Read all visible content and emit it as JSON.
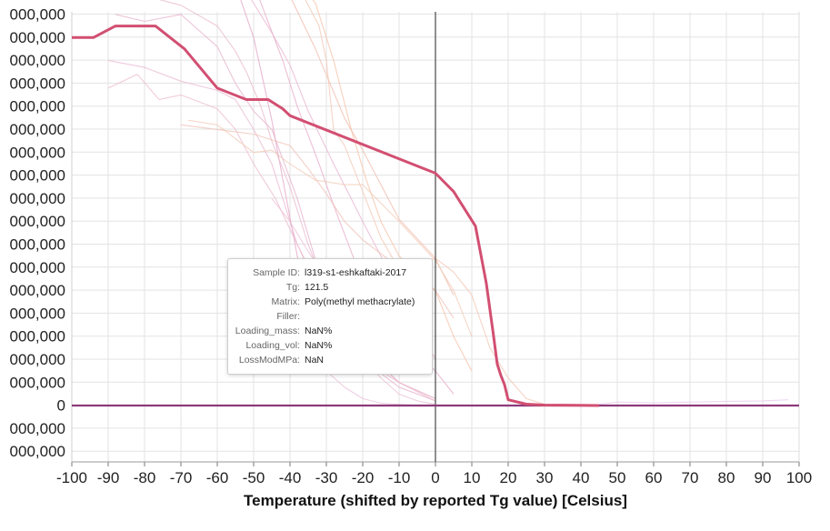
{
  "chart_data": {
    "type": "line",
    "xlabel": "Temperature (shifted by reported Tg value) [Celsius]",
    "ylabel": "",
    "xlim": [
      -100,
      100
    ],
    "x_ticks": [
      "-100",
      "-90",
      "-80",
      "-70",
      "-60",
      "-50",
      "-40",
      "-30",
      "-20",
      "-10",
      "0",
      "10",
      "20",
      "30",
      "40",
      "50",
      "60",
      "70",
      "80",
      "90",
      "100"
    ],
    "y_ticks": [
      "000,000",
      "000,000",
      "000,000",
      "000,000",
      "000,000",
      "000,000",
      "000,000",
      "000,000",
      "000,000",
      "000,000",
      "000,000",
      "000,000",
      "000,000",
      "000,000",
      "000,000",
      "000,000",
      "000,000",
      "0",
      "000,000",
      "000,000"
    ],
    "grid": true,
    "highlight_series": {
      "name": "l319-s1-eshkaftaki-2017",
      "color": "#d24f72",
      "x": [
        -100,
        -94,
        -88,
        -84,
        -77,
        -69,
        -60,
        -52,
        -46,
        -42,
        -40,
        0,
        5,
        11,
        14,
        16,
        17,
        18,
        19,
        20,
        25,
        30,
        45
      ],
      "y": [
        16.0,
        16.0,
        16.5,
        16.5,
        16.5,
        15.5,
        13.8,
        13.3,
        13.3,
        12.9,
        12.6,
        10.1,
        9.3,
        7.8,
        5.3,
        3.0,
        1.8,
        1.3,
        0.9,
        0.25,
        0.06,
        0.02,
        0.0
      ]
    },
    "background_series": [
      {
        "color": "#e2a3c4",
        "x": [
          -100,
          -95,
          -89,
          -84,
          -80,
          -78,
          -74,
          -70,
          -62,
          -55,
          -50,
          -45,
          -41,
          -38,
          -30
        ],
        "y": [
          22.7,
          22.6,
          22.4,
          22.5,
          22.5,
          22.8,
          22.3,
          21.5,
          20.0,
          18.3,
          16.0,
          12.4,
          9.0,
          6.5,
          1.5
        ]
      },
      {
        "color": "#e6a9c6",
        "x": [
          -95,
          -86,
          -80,
          -72,
          -68,
          -60,
          -54,
          -48,
          -42,
          -38,
          -32,
          -28,
          -22,
          -15,
          0,
          5
        ],
        "y": [
          22.6,
          22.5,
          22.4,
          22.4,
          22.6,
          21.8,
          20.2,
          17.5,
          15.0,
          13.0,
          10.5,
          8.7,
          6.2,
          4.0,
          1.5,
          0.5
        ]
      },
      {
        "color": "#e8b2cf",
        "x": [
          -93,
          -82,
          -75,
          -68,
          -60,
          -52,
          -45,
          -40,
          -35,
          -28,
          -20,
          -10,
          0
        ],
        "y": [
          21.6,
          22.0,
          22.0,
          21.1,
          19.7,
          18.0,
          16.2,
          14.8,
          12.8,
          10.5,
          8.0,
          5.0,
          2.0
        ]
      },
      {
        "color": "#f0b9a9",
        "x": [
          -75,
          -70,
          -65,
          -60,
          -55,
          -49,
          -45,
          -40,
          -33,
          -25,
          -20,
          -10,
          0,
          5
        ],
        "y": [
          22.3,
          22.4,
          22.0,
          21.1,
          21.4,
          20.8,
          19.8,
          17.8,
          15.5,
          12.5,
          11.1,
          8.1,
          6.4,
          4.8
        ]
      },
      {
        "color": "#f5c0a6",
        "x": [
          -60,
          -55,
          -48,
          -43,
          -40,
          -33,
          -28,
          -23,
          -19,
          -15,
          -10,
          0,
          5,
          10
        ],
        "y": [
          21.0,
          20.9,
          20.5,
          19.4,
          18.8,
          17.5,
          15.0,
          11.9,
          9.8,
          8.0,
          6.5,
          5.0,
          3.0,
          1.5
        ]
      },
      {
        "color": "#f3c6b2",
        "x": [
          -40,
          -35,
          -32,
          -30,
          -28,
          -25,
          -20,
          -15,
          -10,
          0,
          5,
          10,
          15,
          20,
          25,
          30
        ],
        "y": [
          19.0,
          17.4,
          16.5,
          15.0,
          12.0,
          11.3,
          9.3,
          7.3,
          5.9,
          6.4,
          5.8,
          4.8,
          2.5,
          1.2,
          0.3,
          0.05
        ]
      },
      {
        "color": "#e9b7d0",
        "x": [
          -90,
          -80,
          -70,
          -60,
          -55,
          -50,
          -45,
          -42,
          -38,
          -32,
          -25,
          -20,
          -10,
          0
        ],
        "y": [
          15.0,
          14.7,
          14.1,
          13.7,
          13.3,
          12.0,
          10.5,
          9.0,
          7.0,
          5.0,
          3.0,
          2.0,
          1.0,
          0.3
        ]
      },
      {
        "color": "#e6b0cb",
        "x": [
          -88,
          -80,
          -70,
          -60,
          -55,
          -50,
          -45,
          -38,
          -32,
          -26,
          -20,
          -10,
          0
        ],
        "y": [
          17.0,
          16.7,
          17.0,
          15.6,
          14.0,
          12.8,
          12.0,
          9.0,
          5.8,
          3.5,
          2.0,
          0.8,
          0.2
        ]
      },
      {
        "color": "#e8b8c9",
        "x": [
          -82,
          -70,
          -60,
          -55,
          -52,
          -48,
          -45,
          -40,
          -35,
          -30,
          -20,
          -10,
          0
        ],
        "y": [
          17.9,
          17.4,
          16.5,
          15.4,
          14.5,
          13.0,
          11.5,
          9.5,
          7.0,
          5.0,
          2.5,
          1.0,
          0.3
        ]
      },
      {
        "color": "#ecb9cf",
        "x": [
          -90,
          -82,
          -76,
          -70,
          -65,
          -60,
          -55,
          -50,
          -44,
          -38,
          -30,
          -20,
          -10,
          0
        ],
        "y": [
          13.8,
          14.4,
          13.3,
          13.5,
          13.2,
          12.9,
          12.0,
          10.5,
          9.0,
          7.0,
          4.5,
          2.5,
          1.0,
          0.2
        ]
      },
      {
        "color": "#efbfb5",
        "x": [
          -70,
          -60,
          -50,
          -40,
          -35,
          -30,
          -25,
          -20,
          -10,
          0,
          5
        ],
        "y": [
          12.2,
          12.0,
          11.8,
          11.3,
          10.3,
          9.2,
          8.0,
          7.2,
          6.0,
          5.0,
          3.8
        ]
      },
      {
        "color": "#f2c9b6",
        "x": [
          -68,
          -60,
          -55,
          -50,
          -45,
          -40,
          -33,
          -25,
          -20,
          -10,
          0,
          5,
          10
        ],
        "y": [
          12.4,
          12.2,
          11.6,
          11.0,
          11.1,
          10.5,
          9.8,
          9.6,
          9.6,
          8.0,
          6.3,
          5.0,
          3.0
        ]
      },
      {
        "color": "#ebbfd4",
        "x": [
          -45,
          -40,
          -35,
          -30,
          -25,
          -20,
          -15,
          -10,
          -5,
          0
        ],
        "y": [
          9.0,
          8.0,
          6.7,
          5.5,
          3.5,
          2.0,
          1.2,
          0.5,
          0.2,
          0.05
        ]
      },
      {
        "color": "#e9c0da",
        "x": [
          -30,
          -25,
          -20,
          -15,
          -10,
          -5,
          0
        ],
        "y": [
          1.5,
          0.8,
          0.3,
          0.1,
          0.05,
          0.02,
          0.0
        ]
      },
      {
        "color": "#e4c9ec",
        "x": [
          45,
          50,
          60,
          70,
          80,
          90,
          97
        ],
        "y": [
          0.05,
          0.15,
          0.12,
          0.15,
          0.18,
          0.2,
          0.25
        ]
      }
    ],
    "baseline_series": {
      "color": "#8e3a7a",
      "x": [
        -100,
        100
      ],
      "y": [
        0,
        0
      ]
    },
    "vertical_marker": {
      "x": 0,
      "color": "#555555"
    }
  },
  "tooltip": {
    "sample_id_label": "Sample ID:",
    "sample_id": "l319-s1-eshkaftaki-2017",
    "tg_label": "Tg:",
    "tg": "121.5",
    "matrix_label": "Matrix:",
    "matrix": "Poly(methyl methacrylate)",
    "filler_label": "Filler:",
    "filler": "",
    "loading_mass_label": "Loading_mass:",
    "loading_mass": "NaN%",
    "loading_vol_label": "Loading_vol:",
    "loading_vol": "NaN%",
    "loss_mod_label": "LossModMPa:",
    "loss_mod": "NaN"
  }
}
